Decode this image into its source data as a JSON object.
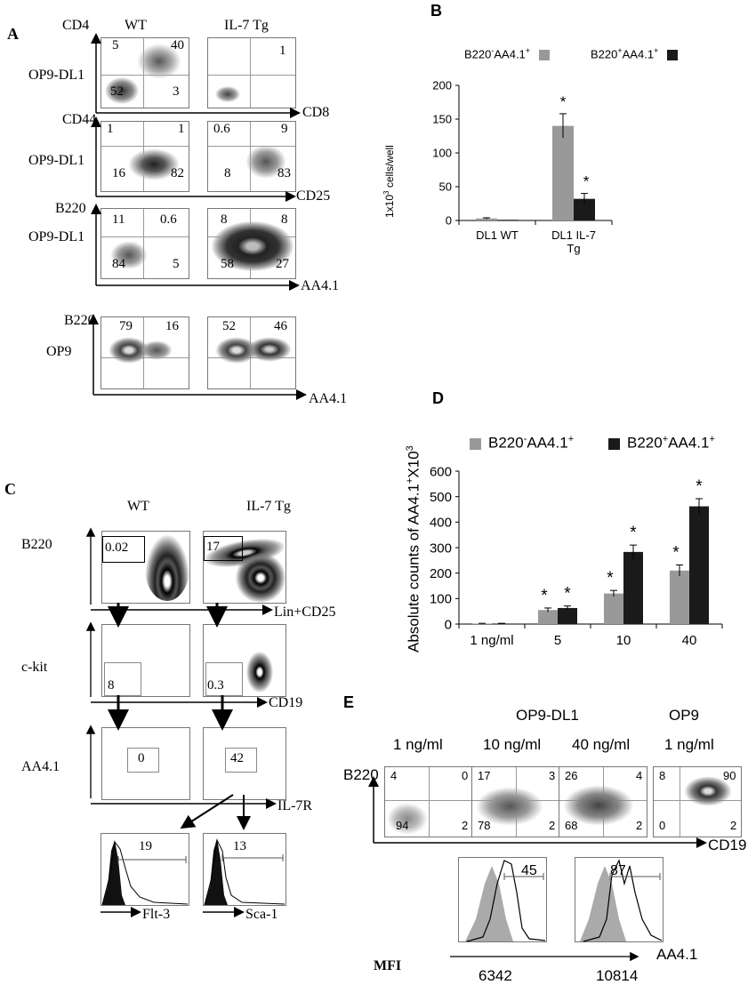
{
  "panelA": {
    "letter": "A",
    "col_wt": "WT",
    "col_tg": "IL-7 Tg",
    "rows": [
      {
        "row_label": "OP9-DL1",
        "y_axis": "CD4",
        "x_axis": "CD8",
        "wt": [
          "5",
          "40",
          "52",
          "3"
        ],
        "tg": [
          "",
          "1",
          "",
          ""
        ]
      },
      {
        "row_label": "OP9-DL1",
        "y_axis": "CD44",
        "x_axis": "CD25",
        "wt": [
          "1",
          "1",
          "16",
          "82"
        ],
        "tg": [
          "0.6",
          "9",
          "8",
          "83"
        ]
      },
      {
        "row_label": "OP9-DL1",
        "y_axis": "B220",
        "x_axis": "AA4.1",
        "wt": [
          "11",
          "0.6",
          "84",
          "5"
        ],
        "tg": [
          "8",
          "8",
          "58",
          "27"
        ]
      },
      {
        "row_label": "OP9",
        "y_axis": "B220",
        "x_axis": "AA4.1",
        "wt": [
          "79",
          "16",
          "",
          ""
        ],
        "tg": [
          "52",
          "46",
          "",
          ""
        ]
      }
    ]
  },
  "panelB": {
    "letter": "B",
    "legend": [
      {
        "name": "B220-AA4.1+",
        "base": "B220",
        "sup1": "-",
        "mid": "AA4.1",
        "sup2": "+"
      },
      {
        "name": "B220+AA4.1+",
        "base": "B220",
        "sup1": "+",
        "mid": "AA4.1",
        "sup2": "+"
      }
    ],
    "ylabel_pre": "1x10",
    "ylabel_sup": "3",
    "ylabel_post": " cells/well",
    "star": "*"
  },
  "panelC": {
    "letter": "C",
    "col_wt": "WT",
    "col_tg": "IL-7 Tg",
    "rows": [
      {
        "y_label": "B220",
        "x_axis": "Lin+CD25",
        "wt": "0.02",
        "tg": "17"
      },
      {
        "y_label": "c-kit",
        "x_axis": "CD19",
        "wt": "8",
        "tg": "0.3"
      },
      {
        "y_label": "AA4.1",
        "x_axis": "IL-7R",
        "wt": "0",
        "tg": "42"
      }
    ],
    "hist": [
      {
        "x_axis": "Flt-3",
        "value": "19"
      },
      {
        "x_axis": "Sca-1",
        "value": "13"
      }
    ]
  },
  "panelD": {
    "letter": "D",
    "legend": [
      {
        "name": "B220-AA4.1+",
        "base": "B220",
        "sup1": "-",
        "mid": "AA4.1",
        "sup2": "+"
      },
      {
        "name": "B220+AA4.1+",
        "base": "B220",
        "sup1": "+",
        "mid": "AA4.1",
        "sup2": "+"
      }
    ],
    "ylabel_pre": "Absolute counts of AA4.1",
    "ylabel_sup1": "+",
    "ylabel_mid": "X10",
    "ylabel_sup2": "3",
    "star": "*"
  },
  "panelE": {
    "letter": "E",
    "group_dl1": "OP9-DL1",
    "group_op9": "OP9",
    "y_axis": "B220",
    "x_axis": "CD19",
    "plots": [
      {
        "condition": "1 ng/ml",
        "q": [
          "4",
          "0",
          "94",
          "2"
        ]
      },
      {
        "condition": "10 ng/ml",
        "q": [
          "17",
          "3",
          "78",
          "2"
        ]
      },
      {
        "condition": "40 ng/ml",
        "q": [
          "26",
          "4",
          "68",
          "2"
        ]
      },
      {
        "condition": "1 ng/ml",
        "q": [
          "8",
          "90",
          "0",
          "2"
        ]
      }
    ],
    "hist": [
      {
        "value": "45",
        "mfi": "6342"
      },
      {
        "value": "87",
        "mfi": "10814"
      }
    ],
    "mfi_label": "MFI",
    "hist_axis": "AA4.1"
  },
  "chart_data": [
    {
      "type": "bar",
      "panel": "B",
      "categories": [
        "DL1 WT",
        "DL1 IL-7 Tg"
      ],
      "series": [
        {
          "name": "B220-AA4.1+",
          "values": [
            3,
            140
          ],
          "errors": [
            1,
            18
          ],
          "color": "#999999"
        },
        {
          "name": "B220+AA4.1+",
          "values": [
            1,
            32
          ],
          "errors": [
            0.5,
            8
          ],
          "color": "#1a1a1a"
        }
      ],
      "ylim": [
        0,
        200
      ],
      "yticks": [
        0,
        50,
        100,
        150,
        200
      ],
      "ylabel": "1x10^3 cells/well",
      "significance": [
        [
          false,
          true
        ],
        [
          false,
          true
        ]
      ]
    },
    {
      "type": "bar",
      "panel": "D",
      "categories": [
        "1 ng/ml",
        "5",
        "10",
        "40"
      ],
      "series": [
        {
          "name": "B220-AA4.1+",
          "values": [
            2,
            55,
            120,
            210
          ],
          "errors": [
            1,
            8,
            12,
            22
          ],
          "color": "#999999"
        },
        {
          "name": "B220+AA4.1+",
          "values": [
            2,
            63,
            283,
            462
          ],
          "errors": [
            1,
            8,
            27,
            30
          ],
          "color": "#1a1a1a"
        }
      ],
      "ylim": [
        0,
        600
      ],
      "yticks": [
        0,
        100,
        200,
        300,
        400,
        500,
        600
      ],
      "ylabel": "Absolute counts of AA4.1+X10^3",
      "significance": [
        [
          false,
          true,
          true,
          true
        ],
        [
          false,
          true,
          true,
          true
        ]
      ]
    }
  ]
}
